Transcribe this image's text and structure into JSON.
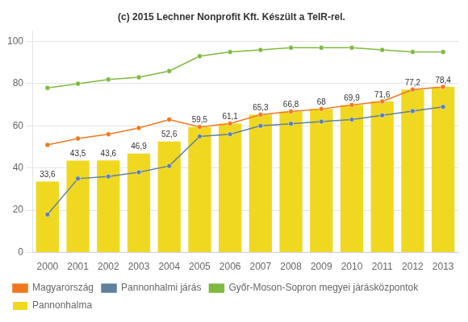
{
  "chart_data": {
    "type": "bar",
    "title": "(c) 2015 Lechner Nonprofit Kft. Készült a TeIR-rel.",
    "categories": [
      2000,
      2001,
      2002,
      2003,
      2004,
      2005,
      2006,
      2007,
      2008,
      2009,
      2010,
      2011,
      2012,
      2013
    ],
    "series": [
      {
        "name": "Magyarország",
        "type": "line",
        "color": "#f07820",
        "marker": "circle",
        "line_style": "solid",
        "values": [
          51.0,
          54.0,
          56.0,
          59.0,
          63.0,
          59.5,
          61.1,
          65.3,
          66.8,
          68.0,
          69.9,
          71.6,
          77.2,
          78.4
        ]
      },
      {
        "name": "Pannonhalmi járás",
        "type": "line",
        "color": "#6080a0",
        "marker": "circle",
        "line_style": "solid",
        "values": [
          18.0,
          35.0,
          36.0,
          38.0,
          41.0,
          55.0,
          56.0,
          60.0,
          61.0,
          62.0,
          63.0,
          65.0,
          67.0,
          69.0
        ]
      },
      {
        "name": "Győr-Moson-Sopron megyei járásközpontok",
        "type": "line",
        "color": "#80b840",
        "marker": "circle",
        "line_style": "solid",
        "values": [
          78.0,
          80.0,
          82.0,
          83.0,
          86.0,
          93.0,
          95.0,
          96.0,
          97.0,
          97.0,
          97.0,
          96.0,
          95.0,
          95.0
        ]
      },
      {
        "name": "Pannonhalma",
        "type": "bar",
        "color": "#f0d820",
        "data_labels": true,
        "values": [
          33.6,
          43.5,
          43.6,
          46.9,
          52.6,
          59.5,
          61.1,
          65.3,
          66.8,
          68.0,
          69.9,
          71.6,
          77.2,
          78.4
        ],
        "value_labels": [
          "33,6",
          "43,5",
          "43,6",
          "46,9",
          "52,6",
          "59,5",
          "61,1",
          "65,3",
          "66,8",
          "68",
          "69,9",
          "71,6",
          "77,2",
          "78,4"
        ]
      }
    ],
    "ylim": [
      0,
      105
    ],
    "yticks": [
      0,
      20,
      40,
      60,
      80,
      100
    ],
    "grid": true,
    "legend": "bottom"
  }
}
